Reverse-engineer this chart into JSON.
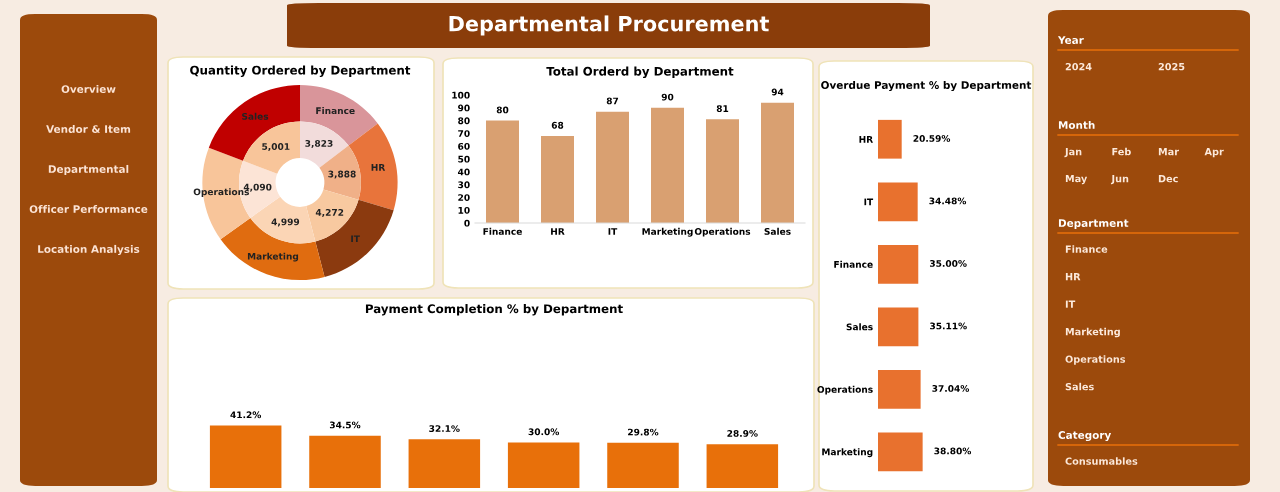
{
  "chart_data": [
    {
      "type": "other",
      "title": "Departmental Procurement"
    },
    {
      "type": "other",
      "annotations": [
        "Overview",
        "Vendor & Item",
        "Departmental",
        "Officer Performance",
        "Location Analysis"
      ]
    },
    {
      "type": "donut",
      "title": "Quantity Ordered by Department",
      "categories": [
        "Finance",
        "HR",
        "IT",
        "Marketing",
        "Operations",
        "Sales"
      ],
      "series": [
        {
          "values": [
            14.66,
            14.91,
            16.38,
            19.17,
            15.69,
            19.19
          ],
          "colors": [
            "#d9959a",
            "#e8743b",
            "#8b3a0f",
            "#e06c10",
            "#f8c59a",
            "#c00000"
          ]
        },
        {
          "values": [
            3823,
            3888,
            4272,
            4999,
            4090,
            5001
          ],
          "colors": [
            "#f2dcdb",
            "#f0b088",
            "#f8c9a0",
            "#fbd5b5",
            "#fce4d6",
            "#f8c59a"
          ],
          "value_labels": [
            "3,823",
            "3,888",
            "4,272",
            "4,999",
            "4,090",
            "5,001"
          ]
        }
      ]
    },
    {
      "type": "bar",
      "title": "Total Orderd by Department",
      "categories": [
        "Finance",
        "HR",
        "IT",
        "Marketing",
        "Operations",
        "Sales"
      ],
      "values": [
        80,
        68,
        87,
        90,
        81,
        94
      ],
      "color": "#d9a071",
      "ylim": [
        0,
        100
      ],
      "yticks": [
        0,
        10,
        20,
        30,
        40,
        50,
        60,
        70,
        80,
        90,
        100
      ],
      "data_labels": true
    },
    {
      "type": "bar",
      "orientation": "horizontal",
      "title": "Overdue Payment % by Department",
      "categories": [
        "HR",
        "IT",
        "Finance",
        "Sales",
        "Operations",
        "Marketing"
      ],
      "values": [
        20.59,
        34.48,
        35.0,
        35.11,
        37.04,
        38.8
      ],
      "color": "#e8712e",
      "tick_labels": "y",
      "value_labels": [
        "20.59%",
        "34.48%",
        "35.00%",
        "35.11%",
        "37.04%",
        "38.80%"
      ]
    },
    {
      "type": "bar",
      "title": "Payment Completion % by Department",
      "categories": [
        null,
        null,
        null,
        null,
        null,
        null
      ],
      "values": [
        41.2,
        34.5,
        32.1,
        30.0,
        29.8,
        28.9
      ],
      "color": "#e8700a",
      "tick_labels": false,
      "value_labels": [
        "41.2%",
        "34.5%",
        "32.1%",
        "30.0%",
        "29.8%",
        "28.9%"
      ]
    },
    {
      "type": "other",
      "title": "Year",
      "annotations": [
        "2024",
        "2025"
      ]
    },
    {
      "type": "other",
      "title": "Month",
      "annotations": [
        "Jan",
        "Feb",
        "Mar",
        "Apr",
        "May",
        "Jun",
        "Dec"
      ]
    },
    {
      "type": "other",
      "title": "Department",
      "annotations": [
        "Finance",
        "HR",
        "IT",
        "Marketing",
        "Operations",
        "Sales"
      ]
    },
    {
      "type": "other",
      "title": "Category",
      "annotations": [
        "Consumables"
      ]
    }
  ]
}
